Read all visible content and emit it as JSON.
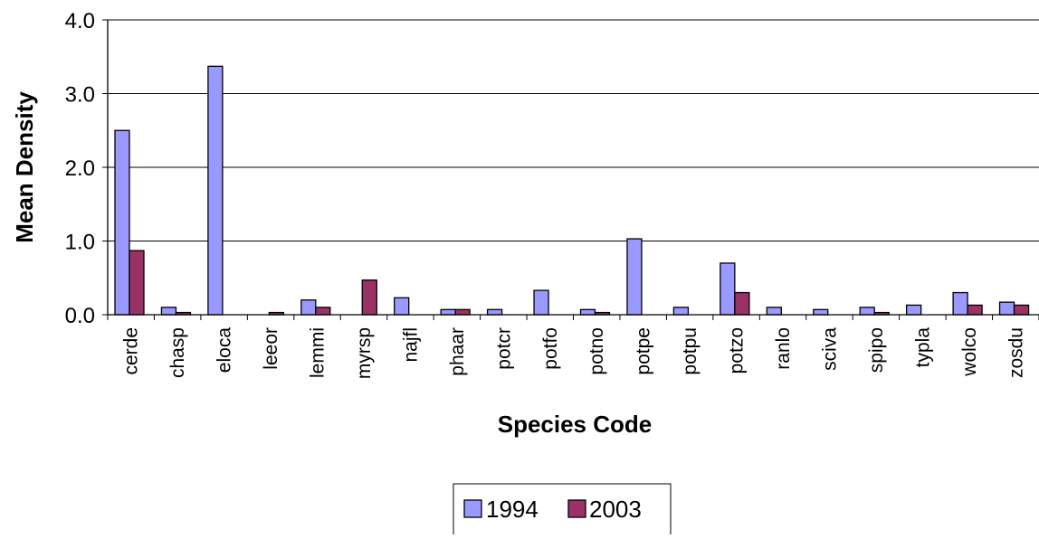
{
  "chart_data": {
    "type": "bar",
    "title": "",
    "xlabel": "Species Code",
    "ylabel": "Mean Density",
    "ylim": [
      0,
      4.0
    ],
    "yticks": [
      "0.0",
      "1.0",
      "2.0",
      "3.0",
      "4.0"
    ],
    "grid": "horizontal",
    "legend_position": "bottom",
    "categories": [
      "cerde",
      "chasp",
      "eloca",
      "leeor",
      "lemmi",
      "myrsp",
      "najfl",
      "phaar",
      "potcr",
      "potfo",
      "potno",
      "potpe",
      "potpu",
      "potzo",
      "ranlo",
      "sciva",
      "spipo",
      "typla",
      "wolco",
      "zosdu"
    ],
    "series": [
      {
        "name": "1994",
        "color": "#9999ff",
        "values": [
          2.5,
          0.1,
          3.37,
          0.0,
          0.2,
          0.0,
          0.23,
          0.07,
          0.07,
          0.33,
          0.07,
          1.03,
          0.1,
          0.7,
          0.1,
          0.07,
          0.1,
          0.13,
          0.3,
          0.17
        ]
      },
      {
        "name": "2003",
        "color": "#993366",
        "values": [
          0.87,
          0.03,
          0.0,
          0.03,
          0.1,
          0.47,
          0.0,
          0.07,
          0.0,
          0.0,
          0.03,
          0.0,
          0.0,
          0.3,
          0.0,
          0.0,
          0.03,
          0.0,
          0.13,
          0.13
        ]
      }
    ]
  }
}
